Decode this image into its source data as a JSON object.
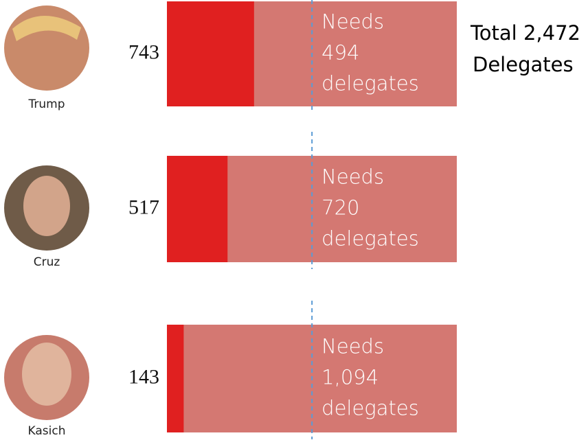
{
  "chart_data": {
    "type": "bar",
    "categories": [
      "Trump",
      "Cruz",
      "Kasich"
    ],
    "series": [
      {
        "color": "#e02020",
        "values": [
          743,
          517,
          143
        ]
      },
      {
        "values": [
          494,
          720,
          1094
        ],
        "value_labels": [
          "494",
          "720",
          "1,094"
        ]
      }
    ],
    "track_color": "#d47872",
    "line_color": "#5b9bd5",
    "needs_prefix": "Needs",
    "needs_suffix": "delegates",
    "annotation": [
      "Total 2,472",
      "Delegates"
    ],
    "xlim": [
      0,
      2472
    ]
  }
}
